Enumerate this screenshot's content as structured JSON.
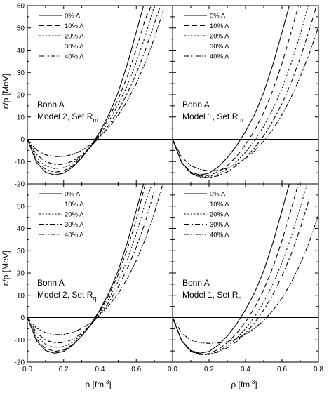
{
  "figure": {
    "ylabel": "ε/ρ [MeV]",
    "xlabel_base": "ρ [fm",
    "xlabel_sup": "-3",
    "xlabel_close": "]"
  },
  "chart_data": [
    {
      "type": "line",
      "panel": "top-left",
      "title_line1": "Bonn A",
      "title_line2": "Model 2, Set R",
      "title_sub": "m",
      "xlim": [
        0,
        0.8
      ],
      "ylim": [
        -20,
        60
      ],
      "xticks": [
        "0.0",
        "0.2",
        "0.4",
        "0.6"
      ],
      "yticks": [
        "-20",
        "-10",
        "0",
        "10",
        "20",
        "30",
        "40",
        "50",
        "60"
      ],
      "legend_position": "top-left",
      "series": [
        {
          "name": "0% Λ",
          "dash": "solid",
          "x": [
            0.0,
            0.05,
            0.1,
            0.15,
            0.2,
            0.25,
            0.3,
            0.35,
            0.4,
            0.45,
            0.5,
            0.55,
            0.6,
            0.65
          ],
          "y": [
            0.0,
            -10.3,
            -14.8,
            -16.0,
            -15.2,
            -12.4,
            -8.3,
            -3.0,
            3.5,
            11.2,
            21.0,
            33.5,
            48.0,
            63.0
          ]
        },
        {
          "name": "10% Λ",
          "dash": "dash",
          "x": [
            0.0,
            0.05,
            0.1,
            0.15,
            0.2,
            0.25,
            0.3,
            0.35,
            0.4,
            0.45,
            0.5,
            0.55,
            0.6,
            0.65,
            0.7
          ],
          "y": [
            0.0,
            -9.5,
            -13.5,
            -14.8,
            -14.2,
            -11.8,
            -8.0,
            -3.2,
            2.8,
            9.8,
            18.0,
            28.0,
            40.5,
            54.0,
            63.0
          ]
        },
        {
          "name": "20% Λ",
          "dash": "dot",
          "x": [
            0.0,
            0.05,
            0.1,
            0.15,
            0.2,
            0.25,
            0.3,
            0.35,
            0.4,
            0.45,
            0.5,
            0.55,
            0.6,
            0.65,
            0.7
          ],
          "y": [
            0.0,
            -8.2,
            -11.9,
            -13.2,
            -12.8,
            -10.8,
            -7.5,
            -3.2,
            2.0,
            8.2,
            15.5,
            24.0,
            34.5,
            46.5,
            60.0
          ]
        },
        {
          "name": "30% Λ",
          "dash": "dashdot",
          "x": [
            0.0,
            0.05,
            0.1,
            0.15,
            0.2,
            0.25,
            0.3,
            0.35,
            0.4,
            0.45,
            0.5,
            0.55,
            0.6,
            0.65,
            0.7,
            0.75
          ],
          "y": [
            0.0,
            -6.8,
            -10.0,
            -11.3,
            -11.2,
            -9.8,
            -7.0,
            -3.2,
            1.2,
            6.5,
            12.8,
            20.5,
            29.5,
            40.0,
            52.0,
            64.0
          ]
        },
        {
          "name": "40% Λ",
          "dash": "dashdotdot",
          "x": [
            0.0,
            0.05,
            0.1,
            0.15,
            0.2,
            0.25,
            0.3,
            0.35,
            0.4,
            0.45,
            0.5,
            0.55,
            0.6,
            0.65,
            0.7,
            0.75
          ],
          "y": [
            0.0,
            -4.8,
            -7.0,
            -7.8,
            -7.7,
            -6.8,
            -5.0,
            -2.3,
            1.2,
            5.5,
            10.8,
            17.2,
            25.0,
            34.5,
            45.5,
            58.0
          ]
        }
      ]
    },
    {
      "type": "line",
      "panel": "top-right",
      "title_line1": "Bonn A",
      "title_line2": "Model 1, Set R",
      "title_sub": "m",
      "xlim": [
        0,
        0.8
      ],
      "ylim": [
        -20,
        60
      ],
      "xticks": [
        "0.0",
        "0.2",
        "0.4",
        "0.6",
        "0.8"
      ],
      "yticks": [],
      "legend_position": "top-left",
      "series": [
        {
          "name": "0% Λ",
          "dash": "solid",
          "x": [
            0.0,
            0.05,
            0.1,
            0.15,
            0.2,
            0.25,
            0.3,
            0.35,
            0.4,
            0.45,
            0.5,
            0.55,
            0.6,
            0.65
          ],
          "y": [
            0.0,
            -10.3,
            -14.8,
            -16.0,
            -15.2,
            -12.4,
            -8.3,
            -3.0,
            3.5,
            11.2,
            21.0,
            33.5,
            48.0,
            63.0
          ]
        },
        {
          "name": "10% Λ",
          "dash": "dash",
          "x": [
            0.0,
            0.05,
            0.1,
            0.15,
            0.2,
            0.25,
            0.3,
            0.35,
            0.4,
            0.45,
            0.5,
            0.55,
            0.6,
            0.65,
            0.7
          ],
          "y": [
            0.0,
            -10.5,
            -15.2,
            -16.5,
            -16.2,
            -14.6,
            -11.8,
            -7.8,
            -2.5,
            4.0,
            12.0,
            22.0,
            34.0,
            48.0,
            63.0
          ]
        },
        {
          "name": "20% Λ",
          "dash": "dot",
          "x": [
            0.0,
            0.05,
            0.1,
            0.15,
            0.2,
            0.25,
            0.3,
            0.35,
            0.4,
            0.45,
            0.5,
            0.55,
            0.6,
            0.65,
            0.7,
            0.75
          ],
          "y": [
            0.0,
            -10.5,
            -15.3,
            -16.8,
            -16.8,
            -15.6,
            -13.3,
            -10.0,
            -5.8,
            -0.6,
            5.8,
            13.5,
            22.8,
            34.0,
            47.0,
            62.0
          ]
        },
        {
          "name": "30% Λ",
          "dash": "dashdot",
          "x": [
            0.0,
            0.05,
            0.1,
            0.15,
            0.2,
            0.25,
            0.3,
            0.35,
            0.4,
            0.45,
            0.5,
            0.55,
            0.6,
            0.65,
            0.7,
            0.75,
            0.8
          ],
          "y": [
            0.0,
            -10.5,
            -15.3,
            -17.0,
            -17.2,
            -16.4,
            -14.6,
            -11.8,
            -8.2,
            -3.8,
            1.6,
            8.2,
            16.0,
            25.4,
            36.5,
            49.0,
            63.0
          ]
        },
        {
          "name": "40% Λ",
          "dash": "dashdotdot",
          "x": [
            0.0,
            0.05,
            0.1,
            0.15,
            0.2,
            0.25,
            0.3,
            0.35,
            0.4,
            0.45,
            0.5,
            0.55,
            0.6,
            0.65,
            0.7,
            0.75,
            0.8
          ],
          "y": [
            0.0,
            -8.0,
            -11.8,
            -13.5,
            -14.2,
            -14.0,
            -13.0,
            -11.2,
            -8.6,
            -5.2,
            -0.8,
            4.5,
            11.0,
            18.8,
            28.0,
            38.5,
            50.5
          ]
        }
      ]
    },
    {
      "type": "line",
      "panel": "bottom-left",
      "title_line1": "Bonn A",
      "title_line2": "Model 2, Set R",
      "title_sub": "q",
      "xlim": [
        0,
        0.8
      ],
      "ylim": [
        -20,
        60
      ],
      "xticks": [
        "0.0",
        "0.2",
        "0.4",
        "0.6"
      ],
      "yticks": [
        "-20",
        "-10",
        "0",
        "10",
        "20",
        "30",
        "40",
        "50"
      ],
      "legend_position": "top-left",
      "series": [
        {
          "name": "0% Λ",
          "dash": "solid",
          "x": [
            0.0,
            0.05,
            0.1,
            0.15,
            0.2,
            0.25,
            0.3,
            0.35,
            0.4,
            0.45,
            0.5,
            0.55,
            0.6,
            0.65
          ],
          "y": [
            0.0,
            -10.3,
            -14.8,
            -16.0,
            -15.2,
            -12.4,
            -8.3,
            -3.0,
            3.5,
            11.2,
            21.0,
            33.5,
            48.0,
            63.0
          ]
        },
        {
          "name": "10% Λ",
          "dash": "dash",
          "x": [
            0.0,
            0.05,
            0.1,
            0.15,
            0.2,
            0.25,
            0.3,
            0.35,
            0.4,
            0.45,
            0.5,
            0.55,
            0.6,
            0.65
          ],
          "y": [
            0.0,
            -9.6,
            -13.8,
            -15.2,
            -14.6,
            -12.1,
            -8.2,
            -3.2,
            2.9,
            10.2,
            19.2,
            30.5,
            44.0,
            60.0
          ]
        },
        {
          "name": "20% Λ",
          "dash": "dot",
          "x": [
            0.0,
            0.05,
            0.1,
            0.15,
            0.2,
            0.25,
            0.3,
            0.35,
            0.4,
            0.45,
            0.5,
            0.55,
            0.6,
            0.65,
            0.7
          ],
          "y": [
            0.0,
            -8.3,
            -12.0,
            -13.4,
            -13.0,
            -11.0,
            -7.6,
            -3.2,
            2.2,
            8.6,
            16.3,
            25.8,
            37.5,
            51.5,
            63.0
          ]
        },
        {
          "name": "30% Λ",
          "dash": "dashdot",
          "x": [
            0.0,
            0.05,
            0.1,
            0.15,
            0.2,
            0.25,
            0.3,
            0.35,
            0.4,
            0.45,
            0.5,
            0.55,
            0.6,
            0.65,
            0.7
          ],
          "y": [
            0.0,
            -6.8,
            -10.1,
            -11.4,
            -11.3,
            -9.8,
            -7.0,
            -3.2,
            1.5,
            7.0,
            13.6,
            21.8,
            31.5,
            43.0,
            57.0
          ]
        },
        {
          "name": "40% Λ",
          "dash": "dashdotdot",
          "x": [
            0.0,
            0.05,
            0.1,
            0.15,
            0.2,
            0.25,
            0.3,
            0.35,
            0.4,
            0.45,
            0.5,
            0.55,
            0.6,
            0.65,
            0.7,
            0.75
          ],
          "y": [
            0.0,
            -4.7,
            -6.8,
            -7.7,
            -7.6,
            -6.7,
            -4.9,
            -2.3,
            1.2,
            5.5,
            10.8,
            17.4,
            25.5,
            35.2,
            47.0,
            61.0
          ]
        }
      ]
    },
    {
      "type": "line",
      "panel": "bottom-right",
      "title_line1": "Bonn A",
      "title_line2": "Model 1, Set R",
      "title_sub": "q",
      "xlim": [
        0,
        0.8
      ],
      "ylim": [
        -20,
        60
      ],
      "xticks": [
        "0.0",
        "0.2",
        "0.4",
        "0.6",
        "0.8"
      ],
      "yticks": [],
      "legend_position": "top-left",
      "series": [
        {
          "name": "0% Λ",
          "dash": "solid",
          "x": [
            0.0,
            0.05,
            0.1,
            0.15,
            0.2,
            0.25,
            0.3,
            0.35,
            0.4,
            0.45,
            0.5,
            0.55,
            0.6,
            0.65
          ],
          "y": [
            0.0,
            -10.3,
            -14.8,
            -16.0,
            -15.2,
            -12.4,
            -8.3,
            -3.0,
            3.5,
            11.2,
            21.0,
            33.5,
            48.0,
            63.0
          ]
        },
        {
          "name": "10% Λ",
          "dash": "dash",
          "x": [
            0.0,
            0.05,
            0.1,
            0.15,
            0.2,
            0.25,
            0.3,
            0.35,
            0.4,
            0.45,
            0.5,
            0.55,
            0.6,
            0.65,
            0.7
          ],
          "y": [
            0.0,
            -10.5,
            -15.2,
            -16.6,
            -16.2,
            -14.3,
            -11.3,
            -7.2,
            -2.0,
            4.5,
            12.5,
            22.5,
            34.5,
            48.5,
            63.0
          ]
        },
        {
          "name": "20% Λ",
          "dash": "dot",
          "x": [
            0.0,
            0.05,
            0.1,
            0.15,
            0.2,
            0.25,
            0.3,
            0.35,
            0.4,
            0.45,
            0.5,
            0.55,
            0.6,
            0.65,
            0.7,
            0.75
          ],
          "y": [
            0.0,
            -10.5,
            -15.2,
            -16.7,
            -16.6,
            -15.2,
            -12.8,
            -9.4,
            -5.0,
            0.4,
            7.0,
            15.0,
            24.6,
            36.0,
            49.5,
            63.0
          ]
        },
        {
          "name": "30% Λ",
          "dash": "dashdot",
          "x": [
            0.0,
            0.05,
            0.1,
            0.15,
            0.2,
            0.25,
            0.3,
            0.35,
            0.4,
            0.45,
            0.5,
            0.55,
            0.6,
            0.65,
            0.7,
            0.75
          ],
          "y": [
            0.0,
            -10.3,
            -14.9,
            -16.4,
            -16.5,
            -15.5,
            -13.6,
            -10.8,
            -7.0,
            -2.3,
            3.4,
            10.3,
            18.6,
            28.4,
            40.0,
            53.5
          ]
        },
        {
          "name": "40% Λ",
          "dash": "dashdotdot",
          "x": [
            0.0,
            0.05,
            0.1,
            0.15,
            0.2,
            0.25,
            0.3,
            0.35,
            0.4,
            0.45,
            0.5,
            0.55,
            0.6,
            0.65,
            0.7,
            0.75,
            0.8
          ],
          "y": [
            0.0,
            -7.0,
            -10.2,
            -11.3,
            -11.6,
            -11.4,
            -10.8,
            -9.5,
            -7.5,
            -4.8,
            -1.3,
            3.2,
            8.8,
            15.6,
            24.0,
            34.0,
            46.0
          ]
        }
      ]
    }
  ]
}
